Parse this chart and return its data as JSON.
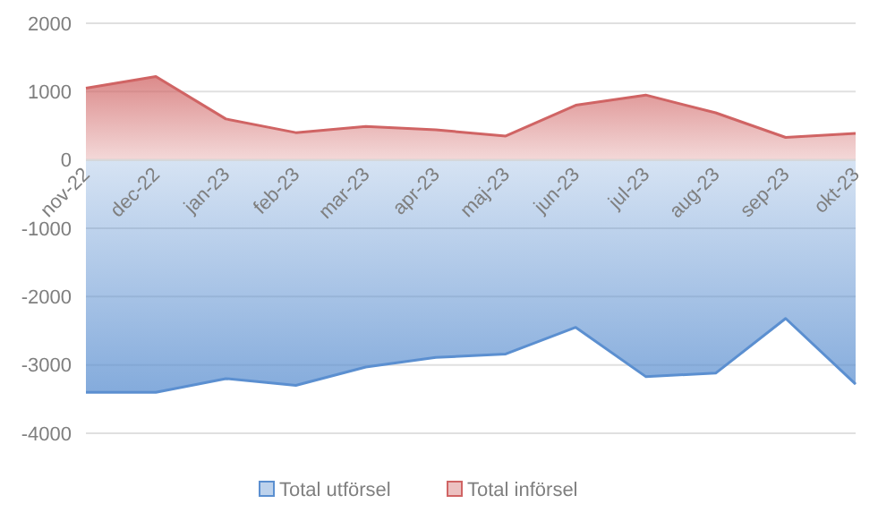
{
  "chart_data": {
    "type": "area",
    "categories": [
      "nov-22",
      "dec-22",
      "jan-23",
      "feb-23",
      "mar-23",
      "apr-23",
      "maj-23",
      "jun-23",
      "jul-23",
      "aug-23",
      "sep-23",
      "okt-23"
    ],
    "series": [
      {
        "name": "Total utförsel",
        "color": "#5b8fd0",
        "values": [
          -3400,
          -3400,
          -3200,
          -3300,
          -3030,
          -2890,
          -2840,
          -2450,
          -3170,
          -3120,
          -2320,
          -3280
        ]
      },
      {
        "name": "Total införsel",
        "color": "#d06464",
        "values": [
          1050,
          1220,
          600,
          400,
          490,
          440,
          350,
          800,
          950,
          690,
          330,
          390
        ]
      }
    ],
    "ylim": [
      -4000,
      2000
    ],
    "yticks": [
      -4000,
      -3000,
      -2000,
      -1000,
      0,
      1000,
      2000
    ],
    "grid": "y",
    "legend": "bottom"
  }
}
